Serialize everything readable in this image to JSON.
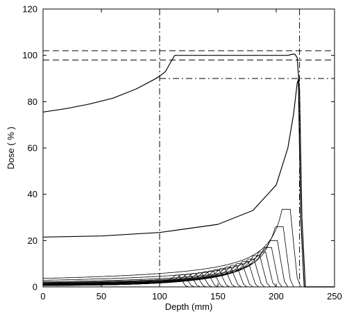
{
  "chart_data": {
    "type": "line",
    "title": "",
    "xlabel": "Depth (mm)",
    "ylabel": "Dose ( % )",
    "xlim": [
      0,
      250
    ],
    "ylim": [
      0,
      120
    ],
    "xticks": [
      0,
      50,
      100,
      150,
      200,
      250
    ],
    "yticks": [
      0,
      20,
      40,
      60,
      80,
      100,
      120
    ],
    "xtick_labels": [
      "0",
      "50",
      "100",
      "150",
      "200",
      "250"
    ],
    "ytick_labels": [
      "0",
      "20",
      "40",
      "60",
      "80",
      "100",
      "120"
    ],
    "grid": false,
    "legend": "none",
    "line_color": "#000000",
    "reference_lines": [
      {
        "orientation": "horizontal",
        "value": 102,
        "style": "dashed"
      },
      {
        "orientation": "horizontal",
        "value": 98,
        "style": "dashed"
      },
      {
        "orientation": "horizontal",
        "value": 90,
        "style": "dash-dot",
        "x_start": 100
      },
      {
        "orientation": "vertical",
        "value": 100,
        "style": "dash-dot"
      },
      {
        "orientation": "vertical",
        "value": 220,
        "style": "dash-dot"
      }
    ],
    "series": [
      {
        "x": [
          0,
          20,
          40,
          60,
          80,
          95,
          100,
          105,
          110,
          113,
          120,
          140,
          160,
          180,
          200,
          210,
          214,
          216,
          218,
          220,
          222,
          225,
          250
        ],
        "y": [
          75.5,
          77,
          79,
          81.5,
          85.5,
          89.5,
          91,
          93,
          97.5,
          100,
          100,
          100,
          100,
          100,
          100,
          100,
          100.5,
          100.5,
          99,
          85,
          30,
          0,
          0
        ]
      },
      {
        "x": [
          0,
          50,
          100,
          150,
          180,
          200,
          210,
          215,
          218,
          219,
          221,
          224,
          250
        ],
        "y": [
          21.5,
          22,
          23.5,
          27,
          33,
          44,
          60,
          75,
          88,
          89.5,
          30,
          0,
          0
        ]
      }
    ],
    "pristine_peaks": {
      "entrance_fraction": 0.11,
      "peaks": [
        {
          "depth": 212,
          "height": 33.5
        },
        {
          "depth": 206,
          "height": 26
        },
        {
          "depth": 201,
          "height": 20
        },
        {
          "depth": 196,
          "height": 17
        },
        {
          "depth": 191,
          "height": 15
        },
        {
          "depth": 186,
          "height": 13.5
        },
        {
          "depth": 181,
          "height": 12
        },
        {
          "depth": 176,
          "height": 11
        },
        {
          "depth": 171,
          "height": 10
        },
        {
          "depth": 166,
          "height": 9.3
        },
        {
          "depth": 161,
          "height": 8.6
        },
        {
          "depth": 156,
          "height": 8
        },
        {
          "depth": 151,
          "height": 7.4
        },
        {
          "depth": 146,
          "height": 6.9
        },
        {
          "depth": 141,
          "height": 6.5
        },
        {
          "depth": 136,
          "height": 6.1
        },
        {
          "depth": 131,
          "height": 5.8
        },
        {
          "depth": 126,
          "height": 5.5
        },
        {
          "depth": 121,
          "height": 5.3
        },
        {
          "depth": 116,
          "height": 5.1
        }
      ]
    }
  }
}
